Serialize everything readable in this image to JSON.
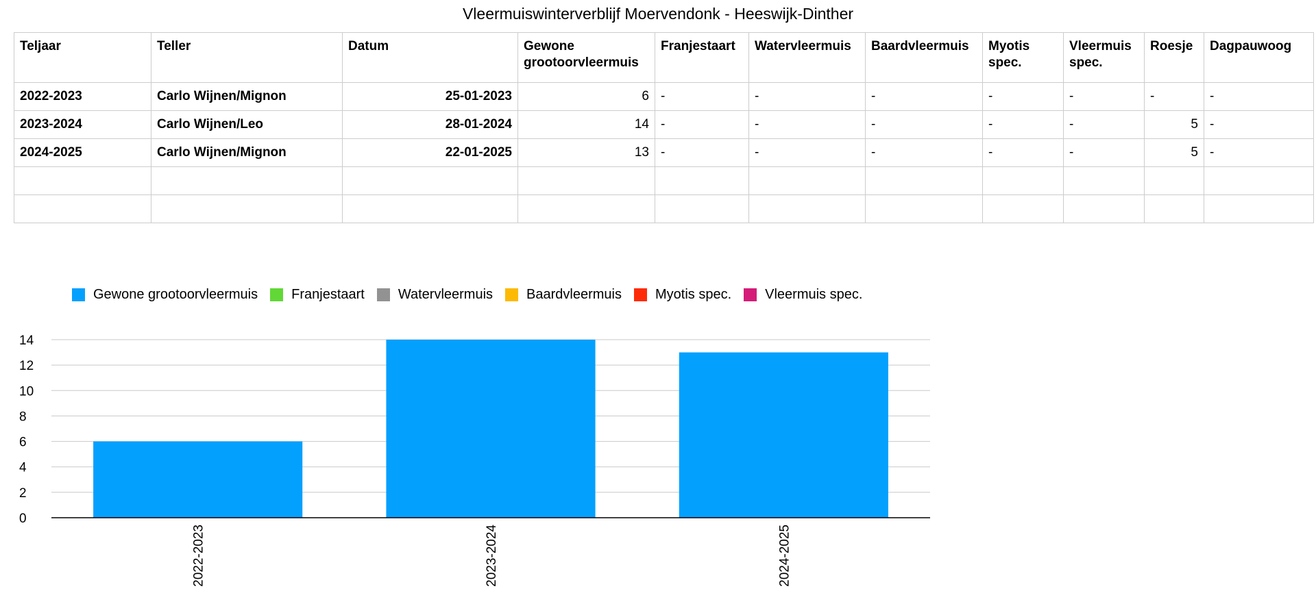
{
  "title": "Vleermuiswinterverblijf Moervendonk - Heeswijk-Dinther",
  "table": {
    "headers": [
      "Teljaar",
      "Teller",
      "Datum",
      "Gewone grootoorvleermuis",
      "Franjestaart",
      "Watervleermuis",
      "Baardvleermuis",
      "Myotis spec.",
      "Vleermuis spec.",
      "Roesje",
      "Dagpauwoog"
    ],
    "rows": [
      [
        "2022-2023",
        "Carlo Wijnen/Mignon",
        "25-01-2023",
        "6",
        "-",
        "-",
        "-",
        "-",
        "-",
        "-",
        "-"
      ],
      [
        "2023-2024",
        "Carlo Wijnen/Leo",
        "28-01-2024",
        "14",
        "-",
        "-",
        "-",
        "-",
        "-",
        "5",
        "-"
      ],
      [
        "2024-2025",
        "Carlo Wijnen/Mignon",
        "22-01-2025",
        "13",
        "-",
        "-",
        "-",
        "-",
        "-",
        "5",
        "-"
      ],
      [
        "",
        "",
        "",
        "",
        "",
        "",
        "",
        "",
        "",
        "",
        ""
      ],
      [
        "",
        "",
        "",
        "",
        "",
        "",
        "",
        "",
        "",
        "",
        ""
      ]
    ]
  },
  "chart_data": {
    "type": "bar",
    "title": "",
    "xlabel": "",
    "ylabel": "",
    "categories": [
      "2022-2023",
      "2023-2024",
      "2024-2025"
    ],
    "series": [
      {
        "name": "Gewone grootoorvleermuis",
        "color": "#04a0fe",
        "values": [
          6,
          14,
          13
        ]
      },
      {
        "name": "Franjestaart",
        "color": "#61d836",
        "values": [
          null,
          null,
          null
        ]
      },
      {
        "name": "Watervleermuis",
        "color": "#929292",
        "values": [
          null,
          null,
          null
        ]
      },
      {
        "name": "Baardvleermuis",
        "color": "#fcba04",
        "values": [
          null,
          null,
          null
        ]
      },
      {
        "name": "Myotis spec.",
        "color": "#fd2b07",
        "values": [
          null,
          null,
          null
        ]
      },
      {
        "name": "Vleermuis spec.",
        "color": "#d41b78",
        "values": [
          null,
          null,
          null
        ]
      }
    ],
    "ylim": [
      0,
      14
    ],
    "yticks": [
      0,
      2,
      4,
      6,
      8,
      10,
      12,
      14
    ],
    "grid": true,
    "legend_position": "top-left"
  }
}
